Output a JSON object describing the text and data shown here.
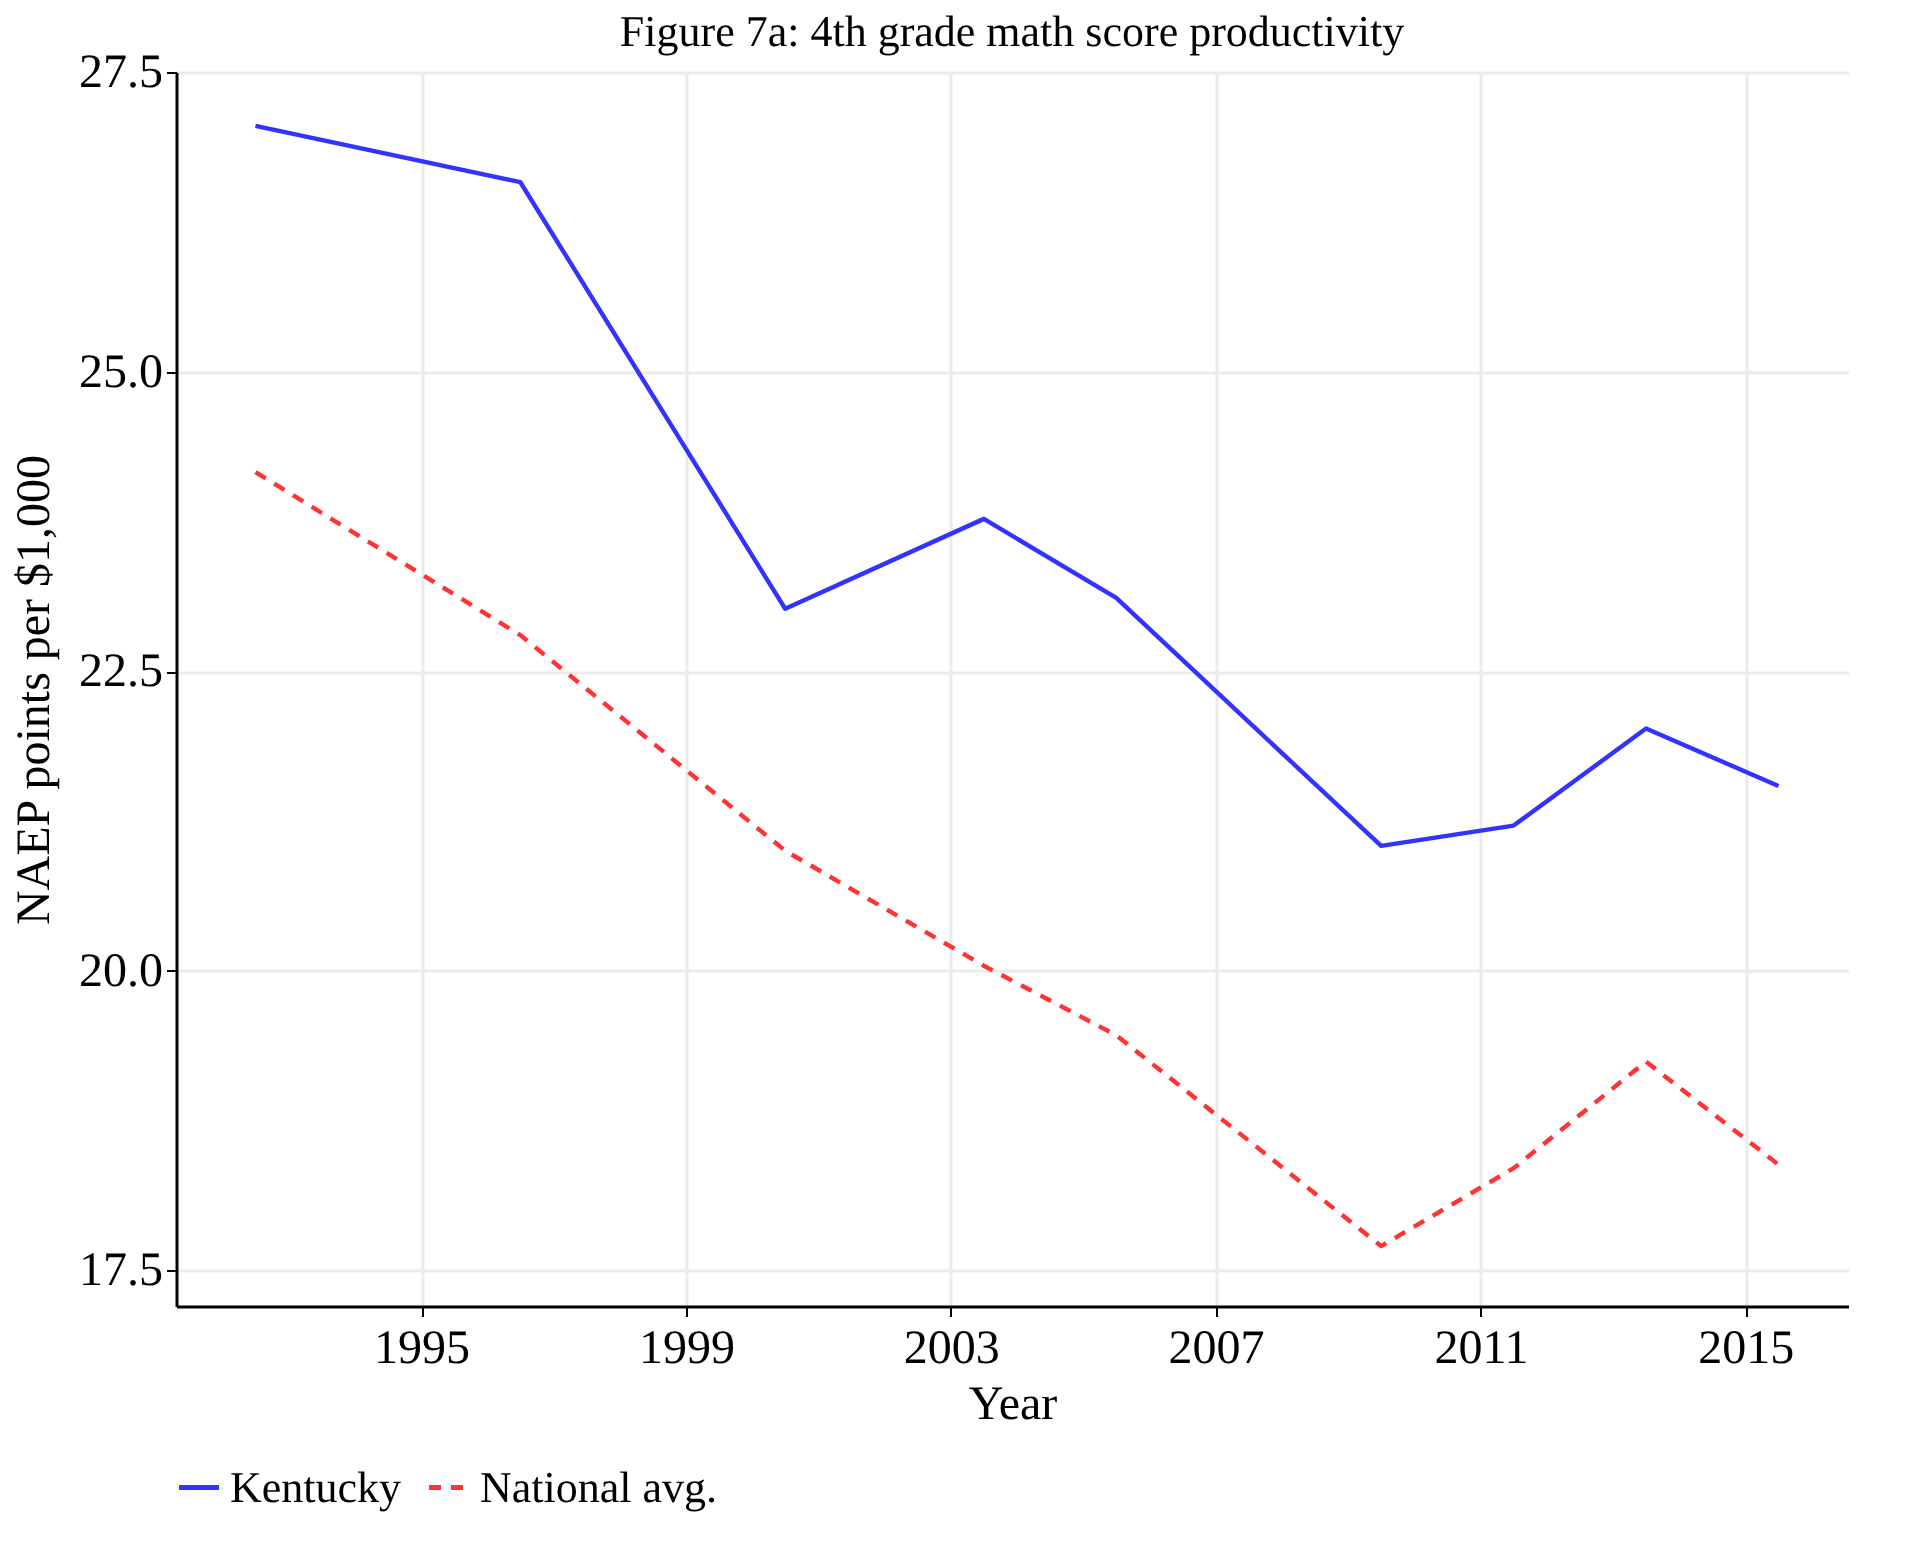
{
  "chart_data": {
    "type": "line",
    "title": "Figure 7a: 4th grade math score productivity",
    "xlabel": "Year",
    "ylabel": "NAEP points per $1,000",
    "x": [
      1992.5,
      1996.5,
      2000.5,
      2003.5,
      2005.5,
      2009.5,
      2011.5,
      2013.5,
      2015.5
    ],
    "series": [
      {
        "name": "Kentucky",
        "color": "#3333ff",
        "line_style": "solid",
        "values": [
          27.05,
          26.58,
          23.02,
          23.77,
          23.11,
          21.04,
          21.21,
          22.02,
          21.54
        ]
      },
      {
        "name": "National avg.",
        "color": "#ff3333",
        "line_style": "dashed",
        "values": [
          24.16,
          22.8,
          21.0,
          20.04,
          19.46,
          17.7,
          18.35,
          19.24,
          18.38
        ]
      }
    ],
    "xlim": [
      1991.3,
      2016.55
    ],
    "xticks": [
      1995,
      1999,
      2003,
      2007,
      2011,
      2015
    ],
    "ylim": [
      17.2,
      27.5
    ],
    "yticks": [
      {
        "value": 17.5,
        "label": "17.5"
      },
      {
        "value": 20,
        "label": "20.0"
      },
      {
        "value": 22.5,
        "label": "22.5"
      },
      {
        "value": 25,
        "label": "25.0"
      },
      {
        "value": 27.5,
        "label": "27.5"
      }
    ],
    "grid": true,
    "legend": "bottom",
    "marker": "none"
  }
}
